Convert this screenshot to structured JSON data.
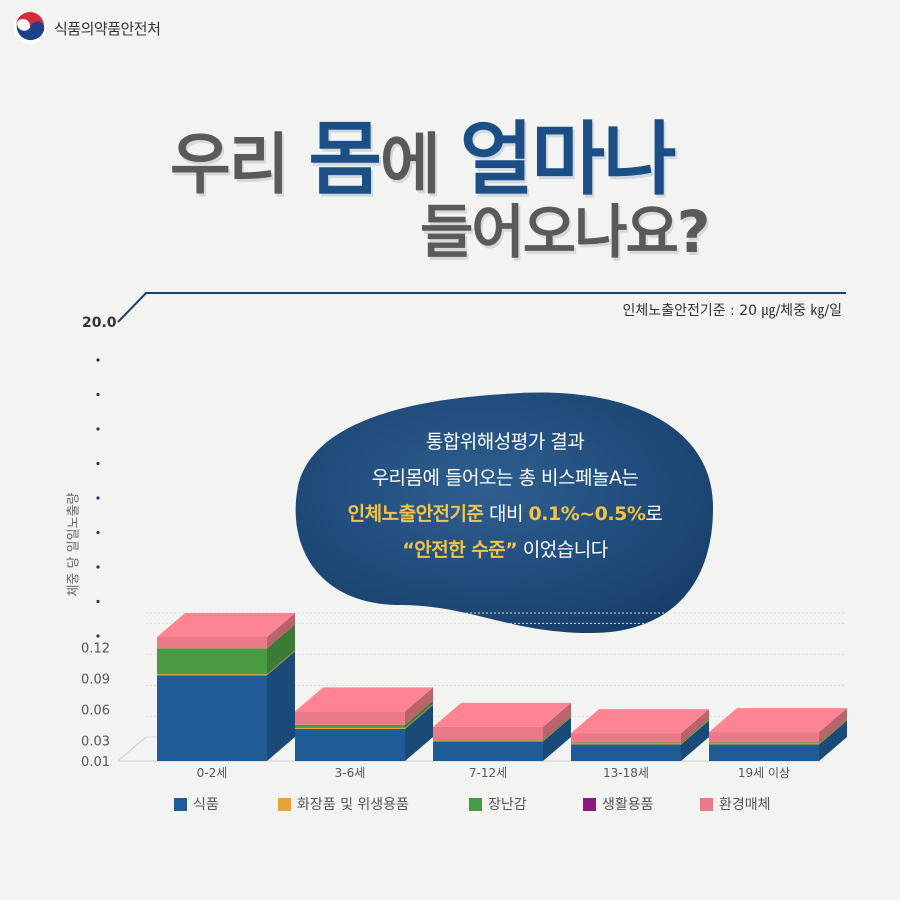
{
  "agency": {
    "name": "식품의약품안전처",
    "logo_icon": "taegeuk-logo-icon"
  },
  "headline": {
    "line1": [
      {
        "text": "우리 ",
        "tone": "gray"
      },
      {
        "text": "몸",
        "tone": "navy"
      },
      {
        "text": "에 ",
        "tone": "gray"
      },
      {
        "text": "얼마나",
        "tone": "navy"
      }
    ],
    "line2": [
      {
        "text": "들어오나요?",
        "tone": "gray"
      }
    ]
  },
  "standard_label": "인체노출안전기준 : 20 ㎍/체중 ㎏/일",
  "callout": {
    "line1": "통합위해성평가 결과",
    "line2": "우리몸에 들어오는 총 비스페놀A는",
    "line3_highlight_a": "인체노출안전기준",
    "line3_plain": " 대비 ",
    "line3_highlight_b": "0.1%~0.5%",
    "line3_end": "로",
    "line4_highlight": "“안전한 수준”",
    "line4_end": " 이었습니다"
  },
  "chart_data": {
    "type": "bar",
    "stacked": true,
    "axis_break": true,
    "ylabel": "체중 당 일일노출량",
    "ymax_label": "20.0",
    "y_ticks": [
      "0.01",
      "0.03",
      "0.06",
      "0.09",
      "0.12"
    ],
    "ylim": [
      0.01,
      0.13
    ],
    "categories": [
      "0-2세",
      "3-6세",
      "7-12세",
      "13-18세",
      "19세 이상"
    ],
    "series": [
      {
        "name": "식품",
        "color": "#1f5c96",
        "values": [
          0.083,
          0.031,
          0.019,
          0.016,
          0.016
        ]
      },
      {
        "name": "화장품 및 위생용품",
        "color": "#e8a23a",
        "values": [
          0.001,
          0.001,
          0.001,
          0.001,
          0.001
        ]
      },
      {
        "name": "장난감",
        "color": "#4a9a44",
        "values": [
          0.025,
          0.003,
          0.001,
          0.001,
          0.001
        ]
      },
      {
        "name": "생활용품",
        "color": "#8a1a7e",
        "values": [
          0.0,
          0.0,
          0.0,
          0.0,
          0.0
        ]
      },
      {
        "name": "환경매체",
        "color": "#ea7a88",
        "values": [
          0.011,
          0.013,
          0.012,
          0.009,
          0.01
        ]
      }
    ]
  }
}
